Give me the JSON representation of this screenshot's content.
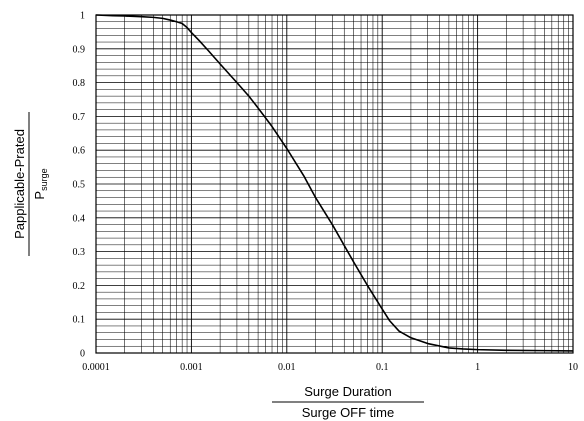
{
  "chart_data": {
    "type": "line",
    "x_scale": "log",
    "xlim": [
      0.0001,
      10
    ],
    "ylim": [
      0,
      1
    ],
    "grid": true,
    "x_ticks": [
      "0.0001",
      "0.001",
      "0.01",
      "0.1",
      "1",
      "10"
    ],
    "y_ticks": [
      "0",
      "0.1",
      "0.2",
      "0.3",
      "0.4",
      "0.5",
      "0.6",
      "0.7",
      "0.8",
      "0.9",
      "1"
    ],
    "xlabel": {
      "numerator": "Surge Duration",
      "denominator": "Surge OFF time"
    },
    "ylabel": {
      "numerator": "Papplicable-Prated",
      "denominator_main": "P",
      "denominator_sub": "surge"
    },
    "series": [
      {
        "x": [
          0.0001,
          0.00015,
          0.0002,
          0.0003,
          0.0004,
          0.0005,
          0.0006,
          0.0007,
          0.0008,
          0.0009,
          0.001,
          0.0012,
          0.0015,
          0.002,
          0.003,
          0.004,
          0.005,
          0.007,
          0.01,
          0.015,
          0.02,
          0.03,
          0.05,
          0.07,
          0.1,
          0.12,
          0.15,
          0.2,
          0.3,
          0.5,
          0.7,
          1,
          2,
          5,
          10
        ],
        "y": [
          1.0,
          0.998,
          0.997,
          0.995,
          0.993,
          0.99,
          0.985,
          0.98,
          0.975,
          0.963,
          0.948,
          0.925,
          0.895,
          0.855,
          0.8,
          0.76,
          0.725,
          0.67,
          0.605,
          0.525,
          0.46,
          0.38,
          0.27,
          0.2,
          0.13,
          0.095,
          0.065,
          0.045,
          0.028,
          0.015,
          0.012,
          0.01,
          0.008,
          0.007,
          0.006
        ],
        "color": "#000000"
      }
    ]
  }
}
